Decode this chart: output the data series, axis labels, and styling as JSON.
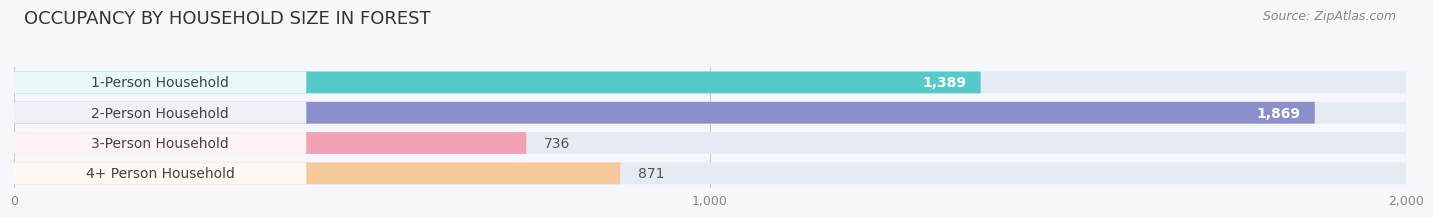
{
  "title": "OCCUPANCY BY HOUSEHOLD SIZE IN FOREST",
  "source": "Source: ZipAtlas.com",
  "categories": [
    "1-Person Household",
    "2-Person Household",
    "3-Person Household",
    "4+ Person Household"
  ],
  "values": [
    1389,
    1869,
    736,
    871
  ],
  "bar_colors": [
    "#56C9C9",
    "#8B8FCC",
    "#F2A0B5",
    "#F5C99A"
  ],
  "bar_bg_color": "#E4EBF3",
  "value_label_colors_inside": [
    "#ffffff",
    "#ffffff"
  ],
  "value_label_colors_outside": [
    "#666666",
    "#666666"
  ],
  "xlim": [
    0,
    2000
  ],
  "xticks": [
    0,
    1000,
    2000
  ],
  "background_color": "#f5f7fa",
  "title_fontsize": 13,
  "source_fontsize": 9,
  "bar_label_fontsize": 10,
  "cat_label_fontsize": 10,
  "inside_threshold": 1000
}
